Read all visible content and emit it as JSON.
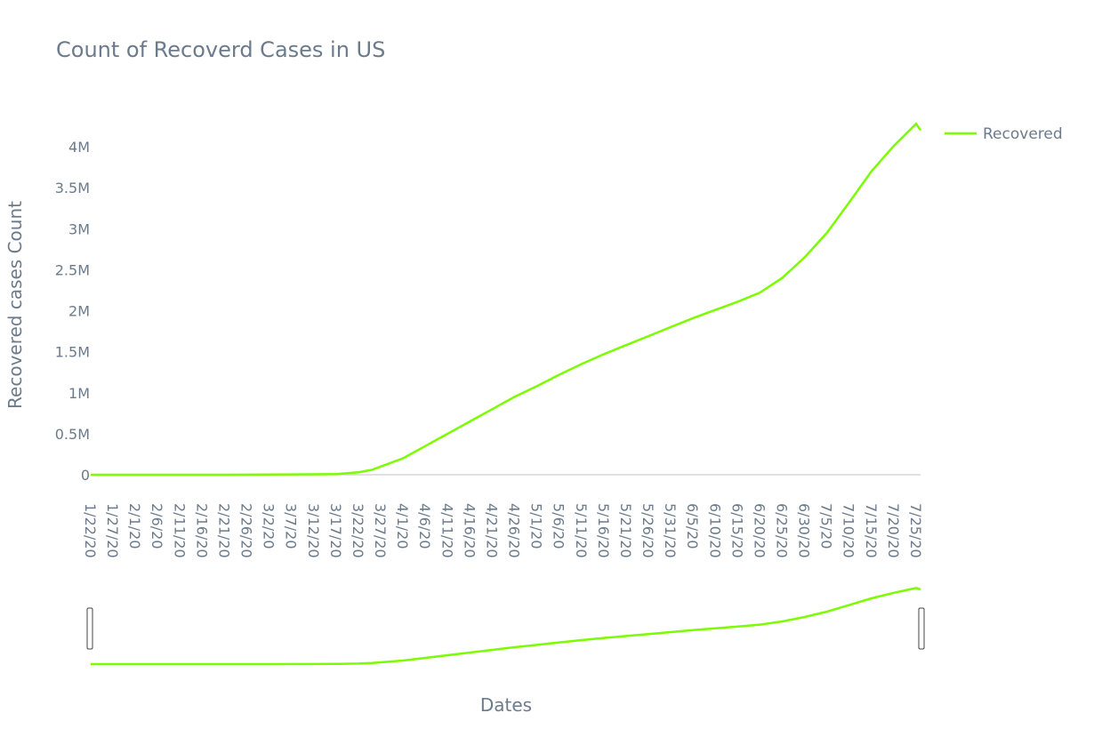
{
  "chart_data": {
    "type": "line",
    "title": "Count of Recoverd Cases in US",
    "xlabel": "Dates",
    "ylabel": "Recovered cases Count",
    "legend_position": "top-right",
    "range_slider": true,
    "grid": false,
    "ylim": [
      0,
      4200000
    ],
    "y_ticks": [
      0,
      500000,
      1000000,
      1500000,
      2000000,
      2500000,
      3000000,
      3500000,
      4000000
    ],
    "y_tick_labels": [
      "0",
      "0.5M",
      "1M",
      "1.5M",
      "2M",
      "2.5M",
      "3M",
      "3.5M",
      "4M"
    ],
    "x_tick_labels": [
      "1/22/20",
      "1/27/20",
      "2/1/20",
      "2/6/20",
      "2/11/20",
      "2/16/20",
      "2/21/20",
      "2/26/20",
      "3/2/20",
      "3/7/20",
      "3/12/20",
      "3/17/20",
      "3/22/20",
      "3/27/20",
      "4/1/20",
      "4/6/20",
      "4/11/20",
      "4/16/20",
      "4/21/20",
      "4/26/20",
      "5/1/20",
      "5/6/20",
      "5/11/20",
      "5/16/20",
      "5/21/20",
      "5/26/20",
      "5/31/20",
      "6/5/20",
      "6/10/20",
      "6/15/20",
      "6/20/20",
      "6/25/20",
      "6/30/20",
      "7/5/20",
      "7/10/20",
      "7/15/20",
      "7/20/20",
      "7/25/20"
    ],
    "series": [
      {
        "name": "Recovered",
        "color": "#7cfc00",
        "x": [
          "1/22/20",
          "2/1/20",
          "2/11/20",
          "2/21/20",
          "3/2/20",
          "3/12/20",
          "3/17/20",
          "3/22/20",
          "3/25/20",
          "3/27/20",
          "4/1/20",
          "4/6/20",
          "4/11/20",
          "4/16/20",
          "4/21/20",
          "4/26/20",
          "5/1/20",
          "5/6/20",
          "5/11/20",
          "5/16/20",
          "5/21/20",
          "5/26/20",
          "5/31/20",
          "6/5/20",
          "6/10/20",
          "6/15/20",
          "6/20/20",
          "6/25/20",
          "6/30/20",
          "7/5/20",
          "7/10/20",
          "7/15/20",
          "7/20/20",
          "7/25/20",
          "7/26/20"
        ],
        "values": [
          0,
          0,
          0,
          0,
          2000,
          5000,
          8000,
          30000,
          60000,
          100000,
          200000,
          350000,
          500000,
          650000,
          800000,
          950000,
          1080000,
          1220000,
          1350000,
          1470000,
          1580000,
          1690000,
          1800000,
          1910000,
          2010000,
          2110000,
          2220000,
          2400000,
          2650000,
          2950000,
          3320000,
          3700000,
          4010000,
          4280000,
          4200000
        ]
      }
    ]
  }
}
